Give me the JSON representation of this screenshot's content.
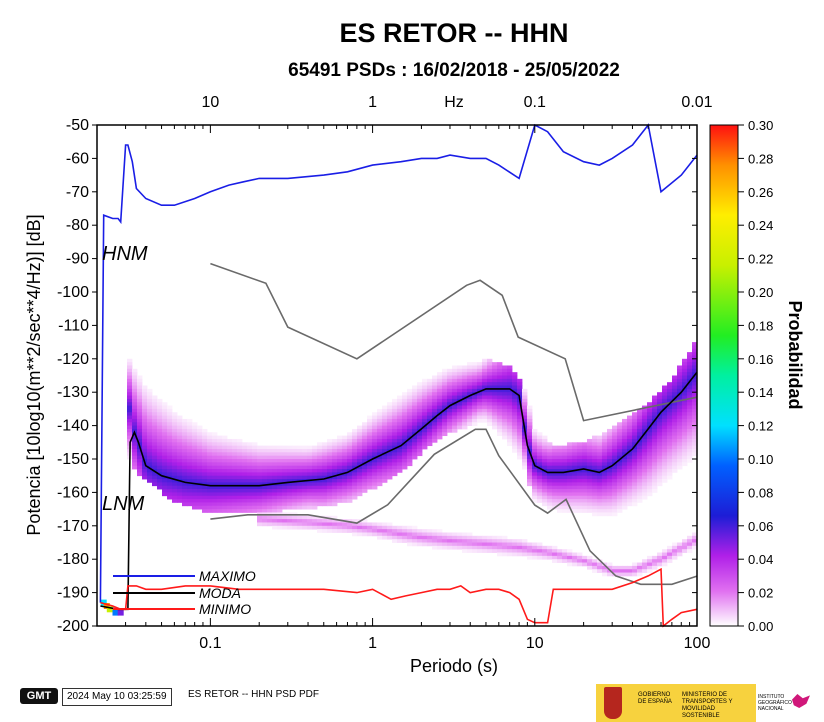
{
  "chart_data": {
    "type": "heatmap",
    "title": "ES RETOR -- HHN",
    "subtitle": "65491 PSDs : 16/02/2018 - 25/05/2022",
    "xlabel": "Periodo (s)",
    "ylabel": "Potencia [10log10(m**2/sec**4/Hz)] [dB]",
    "top_axis_unit": "Hz",
    "x_scale": "log",
    "xlim": [
      0.02,
      100
    ],
    "ylim": [
      -200,
      -50
    ],
    "x_ticks": [
      {
        "value": 0.1,
        "label": "0.1"
      },
      {
        "value": 1,
        "label": "1"
      },
      {
        "value": 10,
        "label": "10"
      },
      {
        "value": 100,
        "label": "100"
      }
    ],
    "top_ticks": [
      {
        "value": 0.1,
        "label": "10"
      },
      {
        "value": 1,
        "label": "1"
      },
      {
        "value": 10,
        "label": "0.1"
      },
      {
        "value": 100,
        "label": "0.01"
      }
    ],
    "y_ticks": [
      {
        "value": -50,
        "label": "-50"
      },
      {
        "value": -60,
        "label": "-60"
      },
      {
        "value": -70,
        "label": "-70"
      },
      {
        "value": -80,
        "label": "-80"
      },
      {
        "value": -90,
        "label": "-90"
      },
      {
        "value": -100,
        "label": "-100"
      },
      {
        "value": -110,
        "label": "-110"
      },
      {
        "value": -120,
        "label": "-120"
      },
      {
        "value": -130,
        "label": "-130"
      },
      {
        "value": -140,
        "label": "-140"
      },
      {
        "value": -150,
        "label": "-150"
      },
      {
        "value": -160,
        "label": "-160"
      },
      {
        "value": -170,
        "label": "-170"
      },
      {
        "value": -180,
        "label": "-180"
      },
      {
        "value": -190,
        "label": "-190"
      },
      {
        "value": -200,
        "label": "-200"
      }
    ],
    "colorbar": {
      "label": "Probabilidad",
      "range": [
        0.0,
        0.3
      ],
      "ticks": [
        "0.00",
        "0.02",
        "0.04",
        "0.06",
        "0.08",
        "0.10",
        "0.12",
        "0.14",
        "0.16",
        "0.18",
        "0.20",
        "0.22",
        "0.24",
        "0.26",
        "0.28",
        "0.30"
      ]
    },
    "reference_models": [
      {
        "name": "HNM",
        "x": [
          0.1,
          0.22,
          0.3,
          0.8,
          3.8,
          4.6,
          6.3,
          7.9,
          15.4,
          20,
          354.8
        ],
        "y": [
          -91.5,
          -97.4,
          -110.5,
          -120,
          -98,
          -96.5,
          -101,
          -113.5,
          -120,
          -138.5,
          -126
        ]
      },
      {
        "name": "LNM",
        "x": [
          0.1,
          0.17,
          0.4,
          0.8,
          1.24,
          2.4,
          4.3,
          5,
          6,
          10,
          12,
          15.6,
          21.9,
          31.6,
          45,
          70,
          101
        ],
        "y": [
          -168,
          -166.7,
          -166.7,
          -169.2,
          -163.7,
          -148.6,
          -141.1,
          -141.1,
          -149,
          -163.8,
          -166.2,
          -162.1,
          -177.5,
          -185,
          -187.5,
          -187.5,
          -185
        ]
      }
    ],
    "series": [
      {
        "name": "MAXIMO",
        "color": "#1a1ee6",
        "x": [
          0.021,
          0.022,
          0.025,
          0.027,
          0.028,
          0.03,
          0.031,
          0.033,
          0.035,
          0.04,
          0.05,
          0.06,
          0.08,
          0.1,
          0.13,
          0.16,
          0.2,
          0.3,
          0.5,
          0.7,
          1,
          1.5,
          2,
          2.5,
          3,
          4,
          5,
          6,
          8,
          10,
          12,
          15,
          20,
          25,
          30,
          40,
          50,
          60,
          80,
          100
        ],
        "y": [
          -193,
          -77,
          -78,
          -78,
          -79,
          -56,
          -56,
          -61,
          -69,
          -72,
          -74,
          -74,
          -72,
          -70,
          -68,
          -67,
          -66,
          -66,
          -65,
          -64,
          -62,
          -61,
          -60,
          -60,
          -59,
          -60,
          -60,
          -62,
          -66,
          -50,
          -52,
          -58,
          -61,
          -62,
          -60,
          -56,
          -50,
          -70,
          -65,
          -59
        ]
      },
      {
        "name": "MODA",
        "color": "#000000",
        "x": [
          0.021,
          0.027,
          0.031,
          0.032,
          0.034,
          0.036,
          0.04,
          0.05,
          0.07,
          0.1,
          0.15,
          0.2,
          0.3,
          0.5,
          0.7,
          1,
          1.5,
          2,
          2.5,
          3,
          4,
          5,
          6,
          7,
          8,
          9,
          10,
          12,
          15,
          20,
          25,
          30,
          40,
          50,
          60,
          80,
          100
        ],
        "y": [
          -194,
          -195,
          -195,
          -145,
          -142,
          -145,
          -152,
          -155,
          -157,
          -158,
          -158,
          -158,
          -157,
          -156,
          -154,
          -150,
          -146,
          -141,
          -137,
          -134,
          -131,
          -129,
          -129,
          -129,
          -131,
          -146,
          -152,
          -154,
          -154,
          -153,
          -154,
          -152,
          -147,
          -141,
          -136,
          -130,
          -124
        ]
      },
      {
        "name": "MINIMO",
        "color": "#ff1a1a",
        "x": [
          0.021,
          0.025,
          0.028,
          0.03,
          0.031,
          0.035,
          0.04,
          0.05,
          0.07,
          0.1,
          0.15,
          0.3,
          0.5,
          0.8,
          1,
          1.3,
          1.6,
          2,
          2.5,
          3,
          3.5,
          4,
          5,
          6,
          7,
          8,
          9,
          10,
          12,
          13,
          15,
          20,
          25,
          30,
          40,
          50,
          60,
          62,
          70,
          80,
          100
        ],
        "y": [
          -193,
          -194,
          -195,
          -195,
          -188,
          -188,
          -189,
          -189,
          -188,
          -188,
          -189,
          -189,
          -189,
          -190,
          -189,
          -192,
          -191,
          -190,
          -189,
          -189,
          -188,
          -190,
          -189,
          -189,
          -190,
          -192,
          -198,
          -199,
          -199,
          -189,
          -189,
          -189,
          -189,
          -189,
          -187,
          -185,
          -183,
          -200,
          -198,
          -196,
          -195
        ]
      }
    ],
    "density_bands": [
      {
        "x": [
          0.031,
          0.04,
          0.06,
          0.1,
          0.2,
          0.4,
          0.7,
          1,
          1.5,
          2,
          3,
          4,
          5,
          7,
          9,
          10,
          13,
          20,
          30,
          50,
          70,
          100
        ],
        "low": [
          -152,
          -156,
          -163,
          -166,
          -166,
          -165,
          -163,
          -159,
          -154,
          -148,
          -142,
          -140,
          -140,
          -148,
          -156,
          -164,
          -167,
          -168,
          -169,
          -164,
          -158,
          -152
        ],
        "high": [
          -117,
          -125,
          -133,
          -140,
          -144,
          -145,
          -141,
          -135,
          -129,
          -125,
          -121,
          -120,
          -120,
          -122,
          -129,
          -140,
          -146,
          -145,
          -141,
          -133,
          -126,
          -114
        ],
        "peak": 0.06
      },
      {
        "x": [
          0.2,
          0.4,
          0.7,
          1,
          1.5,
          2,
          3,
          5,
          8,
          12,
          20,
          30,
          40,
          60,
          100
        ],
        "low": [
          -171,
          -172,
          -173,
          -174,
          -176,
          -177,
          -178,
          -179,
          -180,
          -181,
          -183,
          -186,
          -186,
          -183,
          -177
        ],
        "high": [
          -165,
          -166,
          -167,
          -168,
          -169,
          -170,
          -171,
          -172,
          -173,
          -175,
          -178,
          -181,
          -181,
          -177,
          -171
        ],
        "peak": 0.02
      }
    ]
  },
  "legend_labels": {
    "max": "MAXIMO",
    "mode": "MODA",
    "min": "MINIMO"
  },
  "model_labels": {
    "hnm": "HNM",
    "lnm": "LNM"
  },
  "footer": {
    "logo_text": "GMT",
    "datetime": "2024 May 10 03:25:59",
    "caption": "ES RETOR -- HHN PSD PDF",
    "gov_label": "GOBIERNO DE ESPAÑA",
    "ministry_label": "MINISTERIO DE TRANSPORTES Y MOVILIDAD SOSTENIBLE",
    "institute_label": "INSTITUTO GEOGRÁFICO NACIONAL"
  }
}
